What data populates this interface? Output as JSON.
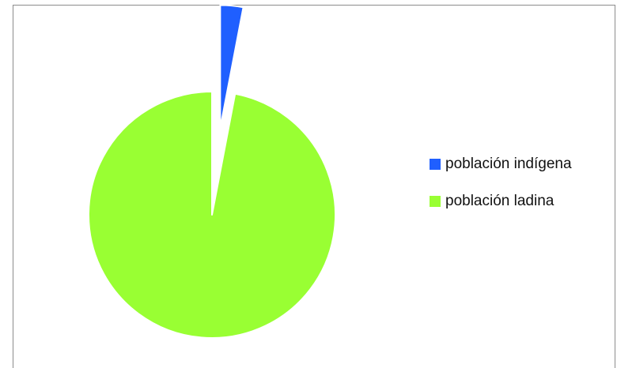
{
  "chart_data": {
    "type": "pie",
    "title": "",
    "slices": [
      {
        "name": "población indígena",
        "value": 3,
        "color": "#1F5FFF",
        "exploded": true
      },
      {
        "name": "población ladina",
        "value": 97,
        "color": "#99FF33",
        "exploded": false
      }
    ],
    "legend_position": "right"
  }
}
